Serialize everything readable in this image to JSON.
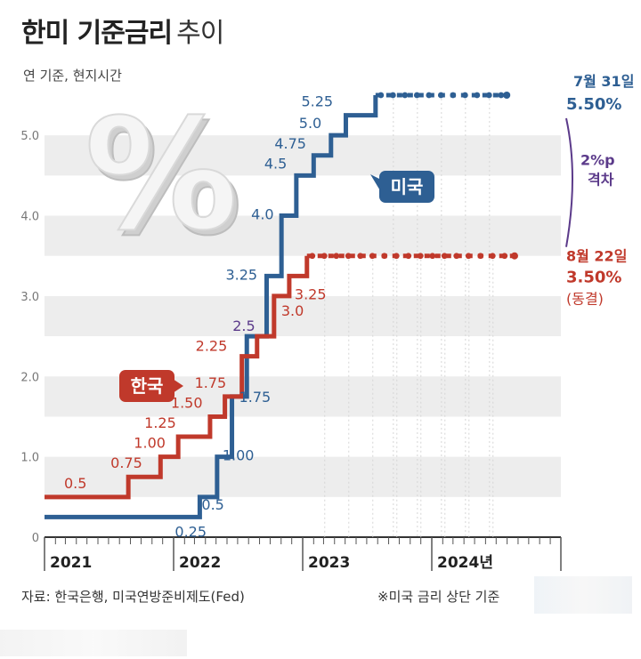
{
  "header": {
    "title_bold": "한미 기준금리",
    "title_rest": "추이",
    "subtitle": "연 기준, 현지시간"
  },
  "footer": {
    "source": "자료: 한국은행, 미국연방준비제도(Fed)",
    "note": "※미국 금리 상단 기준"
  },
  "colors": {
    "us": "#2e5f93",
    "kr": "#c0392b",
    "gap": "#5b3a8a",
    "band": "#ededed",
    "axis": "#333333"
  },
  "chart_data": {
    "type": "line",
    "step": true,
    "x_axis": {
      "type": "date",
      "range": [
        "2021-01-01",
        "2024-12-31"
      ],
      "tick_labels": [
        "2021",
        "2022",
        "2023",
        "2024년"
      ]
    },
    "y_axis": {
      "range": [
        0,
        5.5
      ],
      "tick_labels": [
        "0",
        "1.0",
        "2.0",
        "3.0",
        "4.0",
        "5.0"
      ]
    },
    "bands": true,
    "series": [
      {
        "name": "미국",
        "color_key": "us",
        "points": [
          {
            "date": "2021-01-01",
            "value": 0.25
          },
          {
            "date": "2022-03-16",
            "value": 0.5,
            "label": "0.5"
          },
          {
            "date": "2022-05-04",
            "value": 1.0,
            "label": "1.00"
          },
          {
            "date": "2022-06-15",
            "value": 1.75,
            "label": "1.75"
          },
          {
            "date": "2022-07-27",
            "value": 2.5,
            "label": "2.5"
          },
          {
            "date": "2022-09-21",
            "value": 3.25,
            "label": "3.25"
          },
          {
            "date": "2022-11-02",
            "value": 4.0,
            "label": "4.0"
          },
          {
            "date": "2022-12-14",
            "value": 4.5,
            "label": "4.5"
          },
          {
            "date": "2023-02-01",
            "value": 4.75,
            "label": "4.75"
          },
          {
            "date": "2023-03-22",
            "value": 5.0,
            "label": "5.0"
          },
          {
            "date": "2023-05-03",
            "value": 5.25,
            "label": "5.25"
          },
          {
            "date": "2023-07-26",
            "value": 5.5
          },
          {
            "date": "2024-07-31",
            "value": 5.5
          }
        ],
        "start_label": "0.25",
        "end_label_date": "7월 31일",
        "end_label_value": "5.50%",
        "tag": "미국"
      },
      {
        "name": "한국",
        "color_key": "kr",
        "points": [
          {
            "date": "2021-01-01",
            "value": 0.5
          },
          {
            "date": "2021-08-26",
            "value": 0.75,
            "label": "0.75"
          },
          {
            "date": "2021-11-25",
            "value": 1.0,
            "label": "1.00"
          },
          {
            "date": "2022-01-14",
            "value": 1.25,
            "label": "1.25"
          },
          {
            "date": "2022-04-14",
            "value": 1.5,
            "label": "1.50"
          },
          {
            "date": "2022-05-26",
            "value": 1.75,
            "label": "1.75"
          },
          {
            "date": "2022-07-13",
            "value": 2.25,
            "label": "2.25"
          },
          {
            "date": "2022-08-25",
            "value": 2.5
          },
          {
            "date": "2022-10-12",
            "value": 3.0,
            "label": "3.0"
          },
          {
            "date": "2022-11-24",
            "value": 3.25,
            "label": "3.25"
          },
          {
            "date": "2023-01-13",
            "value": 3.5
          },
          {
            "date": "2024-08-22",
            "value": 3.5
          }
        ],
        "start_label": "0.5",
        "end_label_date": "8월 22일",
        "end_label_value": "3.50%",
        "end_label_note": "(동결)",
        "tag": "한국"
      }
    ],
    "annotations": {
      "gap_value": "2%p",
      "gap_text": "격차",
      "us_25_label": "2.5"
    }
  }
}
